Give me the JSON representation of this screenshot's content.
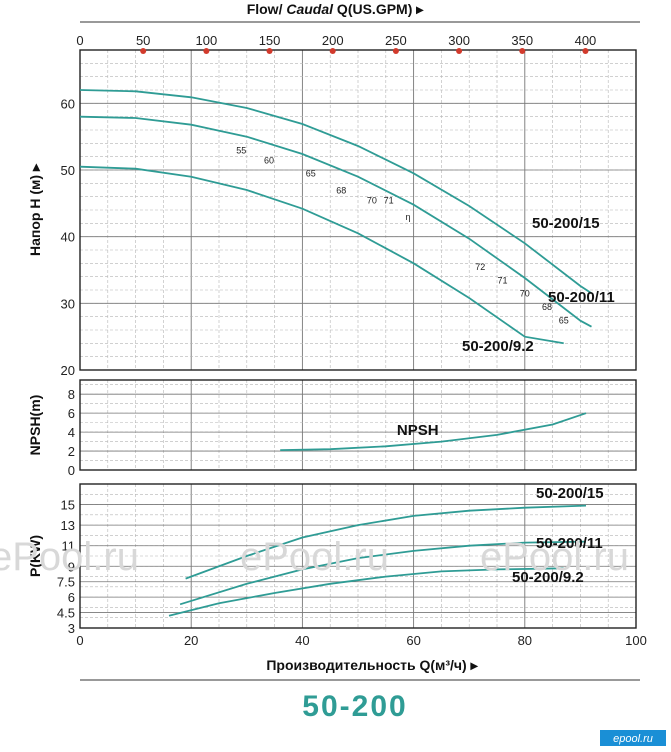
{
  "chart_data": {
    "type": "line",
    "accent_color": "#2f9c95",
    "top_axis": {
      "label_prefix": "Flow/ ",
      "label_italic": "Caudal",
      "label_suffix": " Q(US.GPM)",
      "range": [
        0,
        440
      ],
      "ticks": [
        "0",
        "50",
        "100",
        "150",
        "200",
        "250",
        "300",
        "350",
        "400"
      ],
      "tick_values": [
        0,
        50,
        100,
        150,
        200,
        250,
        300,
        350,
        400
      ]
    },
    "x_axis": {
      "label": "Производительность Q(м³/ч)",
      "range": [
        0,
        100
      ],
      "ticks": [
        "0",
        "20",
        "40",
        "60",
        "80",
        "100"
      ],
      "tick_values": [
        0,
        20,
        40,
        60,
        80,
        100
      ]
    },
    "head_panel": {
      "ylabel": "Напор H (м)",
      "ylim": [
        20,
        68
      ],
      "ticks": [
        "20",
        "30",
        "40",
        "50",
        "60"
      ],
      "tick_values": [
        20,
        30,
        40,
        50,
        60
      ],
      "series": [
        {
          "name": "50-200/15",
          "x": [
            0,
            10,
            20,
            30,
            40,
            50,
            60,
            70,
            80,
            90,
            92
          ],
          "y": [
            62,
            61.8,
            60.9,
            59.3,
            56.9,
            53.6,
            49.5,
            44.6,
            39.0,
            32.6,
            31.5
          ]
        },
        {
          "name": "50-200/11",
          "x": [
            0,
            10,
            20,
            30,
            40,
            50,
            60,
            70,
            80,
            90,
            92
          ],
          "y": [
            58,
            57.8,
            56.8,
            55.0,
            52.4,
            49.0,
            44.8,
            39.7,
            33.8,
            27.4,
            26.5
          ]
        },
        {
          "name": "50-200/9.2",
          "x": [
            0,
            10,
            20,
            30,
            40,
            50,
            60,
            70,
            80,
            87
          ],
          "y": [
            50.5,
            50.2,
            49.0,
            47.0,
            44.2,
            40.5,
            36.0,
            30.8,
            25.0,
            24.0
          ]
        }
      ],
      "efficiency_labels": [
        {
          "text": "55",
          "x": 29,
          "y": 52.5
        },
        {
          "text": "60",
          "x": 34,
          "y": 51
        },
        {
          "text": "65",
          "x": 41.5,
          "y": 49
        },
        {
          "text": "68",
          "x": 47,
          "y": 46.5
        },
        {
          "text": "70",
          "x": 52.5,
          "y": 45
        },
        {
          "text": "71",
          "x": 55.5,
          "y": 45
        },
        {
          "text": "η",
          "x": 59,
          "y": 42.5
        },
        {
          "text": "72",
          "x": 72,
          "y": 35
        },
        {
          "text": "71",
          "x": 76,
          "y": 33
        },
        {
          "text": "70",
          "x": 80,
          "y": 31
        },
        {
          "text": "68",
          "x": 84,
          "y": 29
        },
        {
          "text": "65",
          "x": 87,
          "y": 27
        }
      ]
    },
    "npsh_panel": {
      "ylabel": "NPSH(m)",
      "ylim": [
        0,
        9.5
      ],
      "ticks": [
        "0",
        "2",
        "4",
        "6",
        "8"
      ],
      "tick_values": [
        0,
        2,
        4,
        6,
        8
      ],
      "series": [
        {
          "name": "NPSH",
          "x": [
            36,
            45,
            55,
            65,
            75,
            85,
            91
          ],
          "y": [
            2.1,
            2.2,
            2.5,
            3.0,
            3.7,
            4.8,
            6.0
          ]
        }
      ]
    },
    "power_panel": {
      "ylabel": "P(KW)",
      "ylim": [
        3,
        17
      ],
      "ticks": [
        "3",
        "4.5",
        "6",
        "7.5",
        "9",
        "11",
        "13",
        "15"
      ],
      "tick_values": [
        3,
        4.5,
        6,
        7.5,
        9,
        11,
        13,
        15
      ],
      "series": [
        {
          "name": "50-200/15",
          "x": [
            19,
            30,
            40,
            50,
            60,
            70,
            80,
            91
          ],
          "y": [
            7.8,
            10.0,
            11.8,
            13.0,
            13.9,
            14.4,
            14.7,
            14.9
          ]
        },
        {
          "name": "50-200/11",
          "x": [
            18,
            30,
            40,
            50,
            60,
            70,
            80,
            91
          ],
          "y": [
            5.3,
            7.3,
            8.7,
            9.8,
            10.5,
            11.0,
            11.3,
            11.4
          ]
        },
        {
          "name": "50-200/9.2",
          "x": [
            16,
            25,
            35,
            45,
            55,
            65,
            75,
            87
          ],
          "y": [
            4.2,
            5.4,
            6.4,
            7.3,
            8.0,
            8.5,
            8.7,
            8.8
          ]
        }
      ]
    }
  },
  "model_title": "50-200",
  "watermark": "ePool.ru",
  "corner_brand": "epool.ru"
}
